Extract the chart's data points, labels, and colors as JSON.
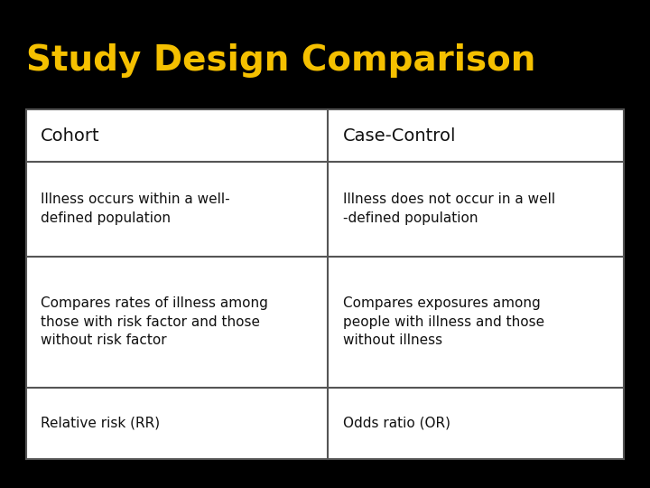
{
  "title": "Study Design Comparison",
  "title_color": "#F5C000",
  "title_bg_color": "#000000",
  "table_bg_color": "#E8E8E8",
  "table_cell_bg": "#FFFFFF",
  "table_border_color": "#555555",
  "text_color": "#111111",
  "col_headers": [
    "Cohort",
    "Case-Control"
  ],
  "rows": [
    [
      "Illness occurs within a well-\ndefined population",
      "Illness does not occur in a well\n-defined population"
    ],
    [
      "Compares rates of illness among\nthose with risk factor and those\nwithout risk factor",
      "Compares exposures among\npeople with illness and those\nwithout illness"
    ],
    [
      "Relative risk (RR)",
      "Odds ratio (OR)"
    ]
  ],
  "fig_width": 7.2,
  "fig_height": 5.4,
  "dpi": 100
}
